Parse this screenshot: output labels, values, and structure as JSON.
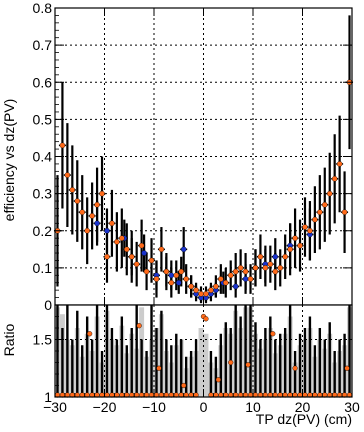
{
  "chart_data": [
    {
      "type": "scatter",
      "panel": "top",
      "xlabel": "",
      "ylabel": "efficiency vs dz(PV)",
      "xlim": [
        -30,
        30
      ],
      "ylim": [
        0,
        0.8
      ],
      "grid": true,
      "xticks": [
        -30,
        -20,
        -10,
        0,
        10,
        20,
        30
      ],
      "yticks": [
        0,
        0.1,
        0.2,
        0.3,
        0.4,
        0.5,
        0.6,
        0.7,
        0.8
      ],
      "yticklabels": [
        "0",
        "0.1",
        "0.2",
        "0.3",
        "0.4",
        "0.5",
        "0.6",
        "0.7",
        "0.8"
      ],
      "series": [
        {
          "marker": "circle",
          "color": "#1a33cc",
          "x": [
            -21.5,
            -19.5,
            -16,
            -14.5,
            -12,
            -9.5,
            -7.5,
            -6.5,
            -5,
            -4,
            -2.5,
            -1.5,
            -0.5,
            0.5,
            1.5,
            2.5,
            4,
            6.5,
            8.5,
            10.5,
            12.5,
            14.5,
            17.5,
            21.5
          ],
          "y": [
            0.22,
            0.2,
            0.18,
            0.13,
            0.14,
            0.08,
            0.09,
            0.08,
            0.06,
            0.15,
            0.05,
            0.03,
            0.02,
            0.02,
            0.03,
            0.04,
            0.06,
            0.05,
            0.07,
            0.1,
            0.11,
            0.13,
            0.16,
            0.19
          ],
          "err": [
            0.06,
            0.06,
            0.05,
            0.05,
            0.05,
            0.04,
            0.04,
            0.04,
            0.03,
            0.06,
            0.03,
            0.02,
            0.015,
            0.015,
            0.02,
            0.02,
            0.03,
            0.03,
            0.04,
            0.05,
            0.05,
            0.05,
            0.06,
            0.07
          ]
        },
        {
          "marker": "circle",
          "color": "#ff6a1a",
          "x": [
            -29.5,
            -28.5,
            -27.5,
            -26.5,
            -25.5,
            -24.5,
            -23.5,
            -22.5,
            -21.5,
            -20.5,
            -19.5,
            -18.5,
            -17.5,
            -16.5,
            -15.5,
            -14.5,
            -13.5,
            -12.5,
            -11.5,
            -10.5,
            -9.5,
            -8.5,
            -7.5,
            -6.5,
            -5.5,
            -4.5,
            -3.5,
            -2.5,
            -1.5,
            -0.5,
            0.5,
            1.5,
            2.5,
            3.5,
            4.5,
            5.5,
            6.5,
            7.5,
            8.5,
            9.5,
            10.5,
            11.5,
            12.5,
            13.5,
            14.5,
            15.5,
            16.5,
            17.5,
            18.5,
            19.5,
            20.5,
            21.5,
            22.5,
            23.5,
            24.5,
            25.5,
            26.5,
            27.5,
            28.5,
            29.5
          ],
          "y": [
            0.2,
            0.43,
            0.35,
            0.31,
            0.28,
            0.25,
            0.2,
            0.24,
            0.27,
            0.3,
            0.13,
            0.22,
            0.17,
            0.18,
            0.15,
            0.13,
            0.11,
            0.16,
            0.09,
            0.12,
            0.07,
            0.15,
            0.09,
            0.06,
            0.08,
            0.09,
            0.07,
            0.05,
            0.04,
            0.03,
            0.03,
            0.04,
            0.05,
            0.07,
            0.06,
            0.08,
            0.09,
            0.1,
            0.09,
            0.07,
            0.1,
            0.13,
            0.1,
            0.11,
            0.09,
            0.1,
            0.13,
            0.15,
            0.18,
            0.16,
            0.21,
            0.2,
            0.23,
            0.25,
            0.27,
            0.3,
            0.34,
            0.38,
            0.25,
            0.6
          ],
          "err": [
            0.15,
            0.17,
            0.14,
            0.12,
            0.11,
            0.1,
            0.09,
            0.09,
            0.1,
            0.1,
            0.07,
            0.09,
            0.08,
            0.08,
            0.07,
            0.07,
            0.06,
            0.07,
            0.05,
            0.06,
            0.05,
            0.06,
            0.05,
            0.04,
            0.04,
            0.04,
            0.04,
            0.03,
            0.02,
            0.02,
            0.02,
            0.02,
            0.03,
            0.04,
            0.04,
            0.04,
            0.05,
            0.05,
            0.05,
            0.04,
            0.05,
            0.06,
            0.05,
            0.05,
            0.05,
            0.05,
            0.06,
            0.07,
            0.08,
            0.07,
            0.08,
            0.08,
            0.09,
            0.1,
            0.1,
            0.11,
            0.12,
            0.13,
            0.11,
            0.18
          ]
        }
      ]
    },
    {
      "type": "bar",
      "panel": "bottom",
      "xlabel": "TP dz(PV) (cm)",
      "ylabel": "Ratio",
      "xlim": [
        -30,
        30
      ],
      "ylim": [
        1,
        1.8
      ],
      "grid": true,
      "xticks": [
        -30,
        -20,
        -10,
        0,
        10,
        20,
        30
      ],
      "xticklabels": [
        "−30",
        "−20",
        "−10",
        "0",
        "10",
        "20",
        "30"
      ],
      "yticks": [
        1,
        1.5
      ],
      "yticklabels": [
        "1",
        "1.5"
      ],
      "bar_color": "#cccccc",
      "bar_x": [
        -29.5,
        -28.5,
        -27.5,
        -26.5,
        -25.5,
        -24.5,
        -23.5,
        -22.5,
        -21.5,
        -20.5,
        -19.5,
        -18.5,
        -17.5,
        -16.5,
        -15.5,
        -14.5,
        -13.5,
        -12.5,
        -11.5,
        -10.5,
        -9.5,
        -8.5,
        -7.5,
        -6.5,
        -5.5,
        -4.5,
        -3.5,
        -2.5,
        -1.5,
        -0.5,
        0.5,
        1.5,
        2.5,
        3.5,
        4.5,
        5.5,
        6.5,
        7.5,
        8.5,
        9.5,
        10.5,
        11.5,
        12.5,
        13.5,
        14.5,
        15.5,
        16.5,
        17.5,
        18.5,
        19.5,
        20.5,
        21.5,
        22.5,
        23.5,
        24.5,
        25.5,
        26.5,
        27.5,
        28.5,
        29.5
      ],
      "bar_values": [
        1.78,
        1.72,
        1.5,
        1.45,
        1.6,
        1.35,
        1.55,
        1.4,
        1.7,
        1.3,
        1.75,
        1.5,
        1.45,
        1.62,
        1.38,
        1.55,
        1.42,
        1.78,
        1.35,
        1.5,
        1.6,
        1.72,
        1.4,
        1.3,
        1.45,
        1.5,
        1.25,
        1.35,
        1.4,
        1.6,
        1.55,
        1.3,
        1.25,
        1.45,
        1.6,
        1.55,
        1.75,
        1.6,
        1.78,
        1.78,
        1.55,
        1.42,
        1.5,
        1.6,
        1.38,
        1.45,
        1.55,
        1.7,
        1.3,
        1.45,
        1.5,
        1.6,
        1.35,
        1.5,
        1.42,
        1.55,
        1.3,
        1.4,
        1.45,
        1.78
      ],
      "marker_color": "#ff6a1a",
      "marker_points": [
        {
          "x": -29.5,
          "y": 1.0
        },
        {
          "x": -28.5,
          "y": 1.0
        },
        {
          "x": -27.5,
          "y": 1.0
        },
        {
          "x": -26.5,
          "y": 1.0
        },
        {
          "x": -25.5,
          "y": 1.0
        },
        {
          "x": -24.5,
          "y": 1.0
        },
        {
          "x": -23.5,
          "y": 1.0
        },
        {
          "x": -22.5,
          "y": 1.0
        },
        {
          "x": -21.5,
          "y": 1.0
        },
        {
          "x": -20.5,
          "y": 1.0
        },
        {
          "x": -19.5,
          "y": 1.0
        },
        {
          "x": -18.5,
          "y": 1.0
        },
        {
          "x": -17.5,
          "y": 1.0
        },
        {
          "x": -16.5,
          "y": 1.0
        },
        {
          "x": -15.5,
          "y": 1.0
        },
        {
          "x": -14.5,
          "y": 1.0
        },
        {
          "x": -13.5,
          "y": 1.0
        },
        {
          "x": -12.5,
          "y": 1.0
        },
        {
          "x": -11.5,
          "y": 1.0
        },
        {
          "x": -10.5,
          "y": 1.0
        },
        {
          "x": -9.5,
          "y": 1.0
        },
        {
          "x": -8.5,
          "y": 1.0
        },
        {
          "x": -7.5,
          "y": 1.0
        },
        {
          "x": -6.5,
          "y": 1.0
        },
        {
          "x": -5.5,
          "y": 1.0
        },
        {
          "x": -4.5,
          "y": 1.0
        },
        {
          "x": -3.5,
          "y": 1.0
        },
        {
          "x": -2.5,
          "y": 1.0
        },
        {
          "x": -1.5,
          "y": 1.0
        },
        {
          "x": 0.0,
          "y": 1.7
        },
        {
          "x": 0.5,
          "y": 1.68
        },
        {
          "x": 1.5,
          "y": 1.0
        },
        {
          "x": 2.5,
          "y": 1.0
        },
        {
          "x": 3.5,
          "y": 1.0
        },
        {
          "x": 4.5,
          "y": 1.0
        },
        {
          "x": 5.5,
          "y": 1.0
        },
        {
          "x": 6.5,
          "y": 1.0
        },
        {
          "x": 7.5,
          "y": 1.0
        },
        {
          "x": 8.5,
          "y": 1.0
        },
        {
          "x": 9.5,
          "y": 1.0
        },
        {
          "x": 10.5,
          "y": 1.0
        },
        {
          "x": 11.5,
          "y": 1.0
        },
        {
          "x": 12.5,
          "y": 1.0
        },
        {
          "x": 13.5,
          "y": 1.0
        },
        {
          "x": 14.5,
          "y": 1.0
        },
        {
          "x": 15.5,
          "y": 1.0
        },
        {
          "x": 16.5,
          "y": 1.0
        },
        {
          "x": 17.5,
          "y": 1.0
        },
        {
          "x": 18.5,
          "y": 1.0
        },
        {
          "x": 19.5,
          "y": 1.0
        },
        {
          "x": 20.5,
          "y": 1.0
        },
        {
          "x": 21.5,
          "y": 1.0
        },
        {
          "x": 22.5,
          "y": 1.0
        },
        {
          "x": 23.5,
          "y": 1.0
        },
        {
          "x": 24.5,
          "y": 1.0
        },
        {
          "x": 25.5,
          "y": 1.0
        },
        {
          "x": 26.5,
          "y": 1.0
        },
        {
          "x": 27.5,
          "y": 1.0
        },
        {
          "x": 28.5,
          "y": 1.0
        },
        {
          "x": 29.5,
          "y": 1.0
        },
        {
          "x": -13.0,
          "y": 1.62
        },
        {
          "x": -23.0,
          "y": 1.55
        },
        {
          "x": -9.0,
          "y": 1.25
        },
        {
          "x": 5.5,
          "y": 1.3
        },
        {
          "x": 9.0,
          "y": 1.28
        },
        {
          "x": 18.5,
          "y": 1.25
        },
        {
          "x": 29.0,
          "y": 1.25
        },
        {
          "x": -4.0,
          "y": 1.1
        },
        {
          "x": 3.0,
          "y": 1.15
        },
        {
          "x": 14.0,
          "y": 1.55
        }
      ],
      "err_points": [
        {
          "x": -29.5,
          "up": 1.8
        },
        {
          "x": -28.5,
          "up": 1.6
        },
        {
          "x": -27.5,
          "up": 1.8
        },
        {
          "x": -26.5,
          "up": 1.5
        },
        {
          "x": -25.5,
          "up": 1.75
        },
        {
          "x": -24.5,
          "up": 1.45
        },
        {
          "x": -23.5,
          "up": 1.7
        },
        {
          "x": -22.5,
          "up": 1.5
        },
        {
          "x": -21.5,
          "up": 1.8
        },
        {
          "x": -20.5,
          "up": 1.4
        },
        {
          "x": -19.5,
          "up": 1.8
        },
        {
          "x": -18.5,
          "up": 1.6
        },
        {
          "x": -17.5,
          "up": 1.5
        },
        {
          "x": -16.5,
          "up": 1.7
        },
        {
          "x": -15.5,
          "up": 1.45
        },
        {
          "x": -14.5,
          "up": 1.6
        },
        {
          "x": -13.5,
          "up": 1.8
        },
        {
          "x": -12.5,
          "up": 1.5
        },
        {
          "x": -11.5,
          "up": 1.4
        },
        {
          "x": -10.5,
          "up": 1.8
        },
        {
          "x": -9.5,
          "up": 1.6
        },
        {
          "x": -8.5,
          "up": 1.75
        },
        {
          "x": -7.5,
          "up": 1.5
        },
        {
          "x": -6.5,
          "up": 1.45
        },
        {
          "x": -5.5,
          "up": 1.55
        },
        {
          "x": -4.5,
          "up": 1.5
        },
        {
          "x": -3.5,
          "up": 1.35
        },
        {
          "x": -2.5,
          "up": 1.4
        },
        {
          "x": -1.5,
          "up": 1.5
        },
        {
          "x": 1.5,
          "up": 1.4
        },
        {
          "x": 2.5,
          "up": 1.35
        },
        {
          "x": 3.5,
          "up": 1.55
        },
        {
          "x": 4.5,
          "up": 1.65
        },
        {
          "x": 5.5,
          "up": 1.6
        },
        {
          "x": 6.5,
          "up": 1.8
        },
        {
          "x": 7.5,
          "up": 1.7
        },
        {
          "x": 8.5,
          "up": 1.8
        },
        {
          "x": 9.5,
          "up": 1.8
        },
        {
          "x": 10.5,
          "up": 1.65
        },
        {
          "x": 11.5,
          "up": 1.5
        },
        {
          "x": 12.5,
          "up": 1.6
        },
        {
          "x": 13.5,
          "up": 1.7
        },
        {
          "x": 14.5,
          "up": 1.5
        },
        {
          "x": 15.5,
          "up": 1.55
        },
        {
          "x": 16.5,
          "up": 1.6
        },
        {
          "x": 17.5,
          "up": 1.8
        },
        {
          "x": 18.5,
          "up": 1.4
        },
        {
          "x": 19.5,
          "up": 1.55
        },
        {
          "x": 20.5,
          "up": 1.6
        },
        {
          "x": 21.5,
          "up": 1.7
        },
        {
          "x": 22.5,
          "up": 1.45
        },
        {
          "x": 23.5,
          "up": 1.6
        },
        {
          "x": 24.5,
          "up": 1.5
        },
        {
          "x": 25.5,
          "up": 1.65
        },
        {
          "x": 26.5,
          "up": 1.4
        },
        {
          "x": 27.5,
          "up": 1.5
        },
        {
          "x": 28.5,
          "up": 1.55
        },
        {
          "x": 29.5,
          "up": 1.8
        }
      ]
    }
  ]
}
